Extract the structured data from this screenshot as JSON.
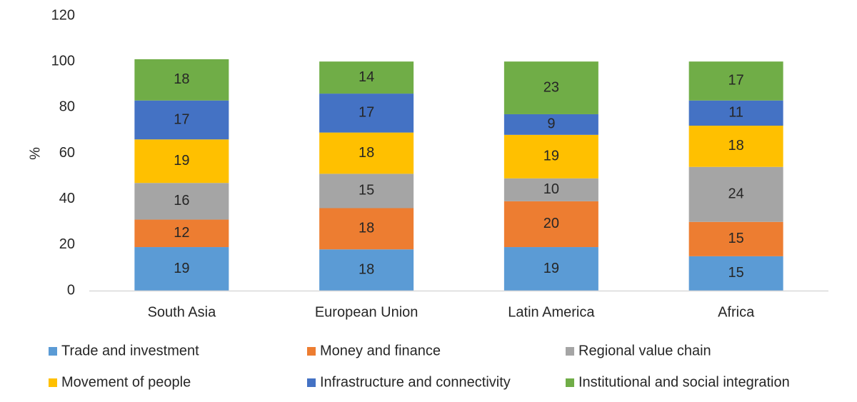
{
  "chart_data": {
    "type": "bar",
    "stacked": true,
    "categories": [
      "South Asia",
      "European Union",
      "Latin America",
      "Africa"
    ],
    "series": [
      {
        "name": "Trade and investment",
        "color": "#5b9bd5",
        "values": [
          19,
          18,
          19,
          15
        ]
      },
      {
        "name": "Money and finance",
        "color": "#ed7d31",
        "values": [
          12,
          18,
          20,
          15
        ]
      },
      {
        "name": "Regional value chain",
        "color": "#a5a5a5",
        "values": [
          16,
          15,
          10,
          24
        ]
      },
      {
        "name": "Movement of people",
        "color": "#ffc000",
        "values": [
          19,
          18,
          19,
          18
        ]
      },
      {
        "name": "Infrastructure and connectivity",
        "color": "#4472c4",
        "values": [
          17,
          17,
          9,
          11
        ]
      },
      {
        "name": "Institutional and social integration",
        "color": "#70ad47",
        "values": [
          18,
          14,
          23,
          17
        ]
      }
    ],
    "ylabel": "%",
    "ylim": [
      0,
      120
    ],
    "yticks": [
      0,
      20,
      40,
      60,
      80,
      100,
      120
    ],
    "grid": false,
    "legend_position": "bottom"
  }
}
